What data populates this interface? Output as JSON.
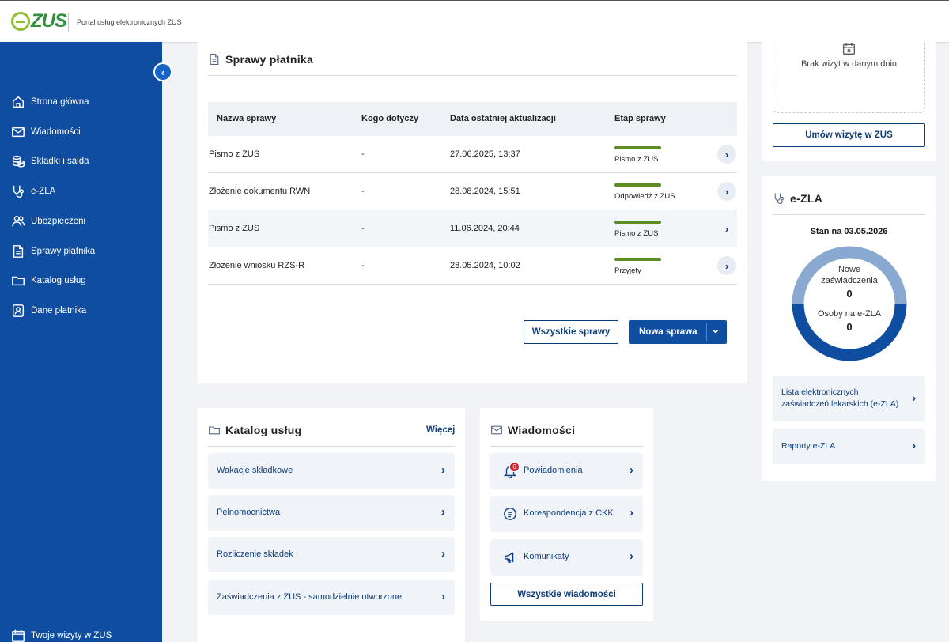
{
  "header": {
    "logo_e": "e",
    "logo_zus": "ZUS",
    "portal_name": "Portal usług elektronicznych ZUS"
  },
  "sidebar": {
    "collapse": "‹",
    "items": [
      {
        "label": "Strona główna",
        "icon": "home-icon"
      },
      {
        "label": "Wiadomości",
        "icon": "mail-icon"
      },
      {
        "label": "Składki i salda",
        "icon": "coins-icon"
      },
      {
        "label": "e-ZLA",
        "icon": "stethoscope-icon"
      },
      {
        "label": "Ubezpieczeni",
        "icon": "users-icon"
      },
      {
        "label": "Sprawy płatnika",
        "icon": "document-icon"
      },
      {
        "label": "Katalog usług",
        "icon": "folder-icon"
      },
      {
        "label": "Dane płatnika",
        "icon": "person-card-icon"
      }
    ],
    "bottom_item": {
      "label": "Twoje wizyty w ZUS",
      "icon": "calendar-icon"
    }
  },
  "sprawy": {
    "title": "Sprawy płatnika",
    "columns": [
      "Nazwa sprawy",
      "Kogo dotyczy",
      "Data ostatniej aktualizacji",
      "Etap sprawy"
    ],
    "rows": [
      {
        "name": "Pismo z ZUS",
        "who": "-",
        "date": "27.06.2025, 13:37",
        "stage": "Pismo z ZUS"
      },
      {
        "name": "Złożenie dokumentu RWN",
        "who": "-",
        "date": "28.08.2024, 15:51",
        "stage": "Odpowiedź z ZUS"
      },
      {
        "name": "Pismo z ZUS",
        "who": "-",
        "date": "11.06.2024, 20:44",
        "stage": "Pismo z ZUS"
      },
      {
        "name": "Złożenie wniosku RZS-R",
        "who": "-",
        "date": "28.05.2024, 10:02",
        "stage": "Przyjęty"
      }
    ],
    "all_button": "Wszystkie sprawy",
    "new_button": "Nowa sprawa",
    "arrow": "›",
    "dropdown": "⌄"
  },
  "wizyty": {
    "empty_text": "Brak wizyt w danym dniu",
    "button": "Umów wizytę w ZUS"
  },
  "ezla": {
    "title": "e-ZLA",
    "status_date": "Stan na 03.05.2026",
    "new_label_1": "Nowe",
    "new_label_2": "zaświadczenia",
    "new_count": "0",
    "persons_label": "Osoby na e-ZLA",
    "persons_count": "0",
    "link1_line1": "Lista elektronicznych",
    "link1_line2": "zaświadczeń lekarskich (e-ZLA)",
    "link2": "Raporty e-ZLA",
    "colors": {
      "ring_light": "#8aa9d0",
      "ring_dark": "#0f4da1"
    }
  },
  "katalog": {
    "title": "Katalog usług",
    "more": "Więcej",
    "items": [
      "Wakacje składkowe",
      "Pełnomocnictwa",
      "Rozliczenie składek",
      "Zaświadczenia z ZUS - samodzielnie utworzone"
    ]
  },
  "wiadomosci": {
    "title": "Wiadomości",
    "badge": "6",
    "items": [
      "Powiadomienia",
      "Korespondencja z CKK",
      "Komunikaty"
    ],
    "all_button": "Wszystkie wiadomości"
  }
}
